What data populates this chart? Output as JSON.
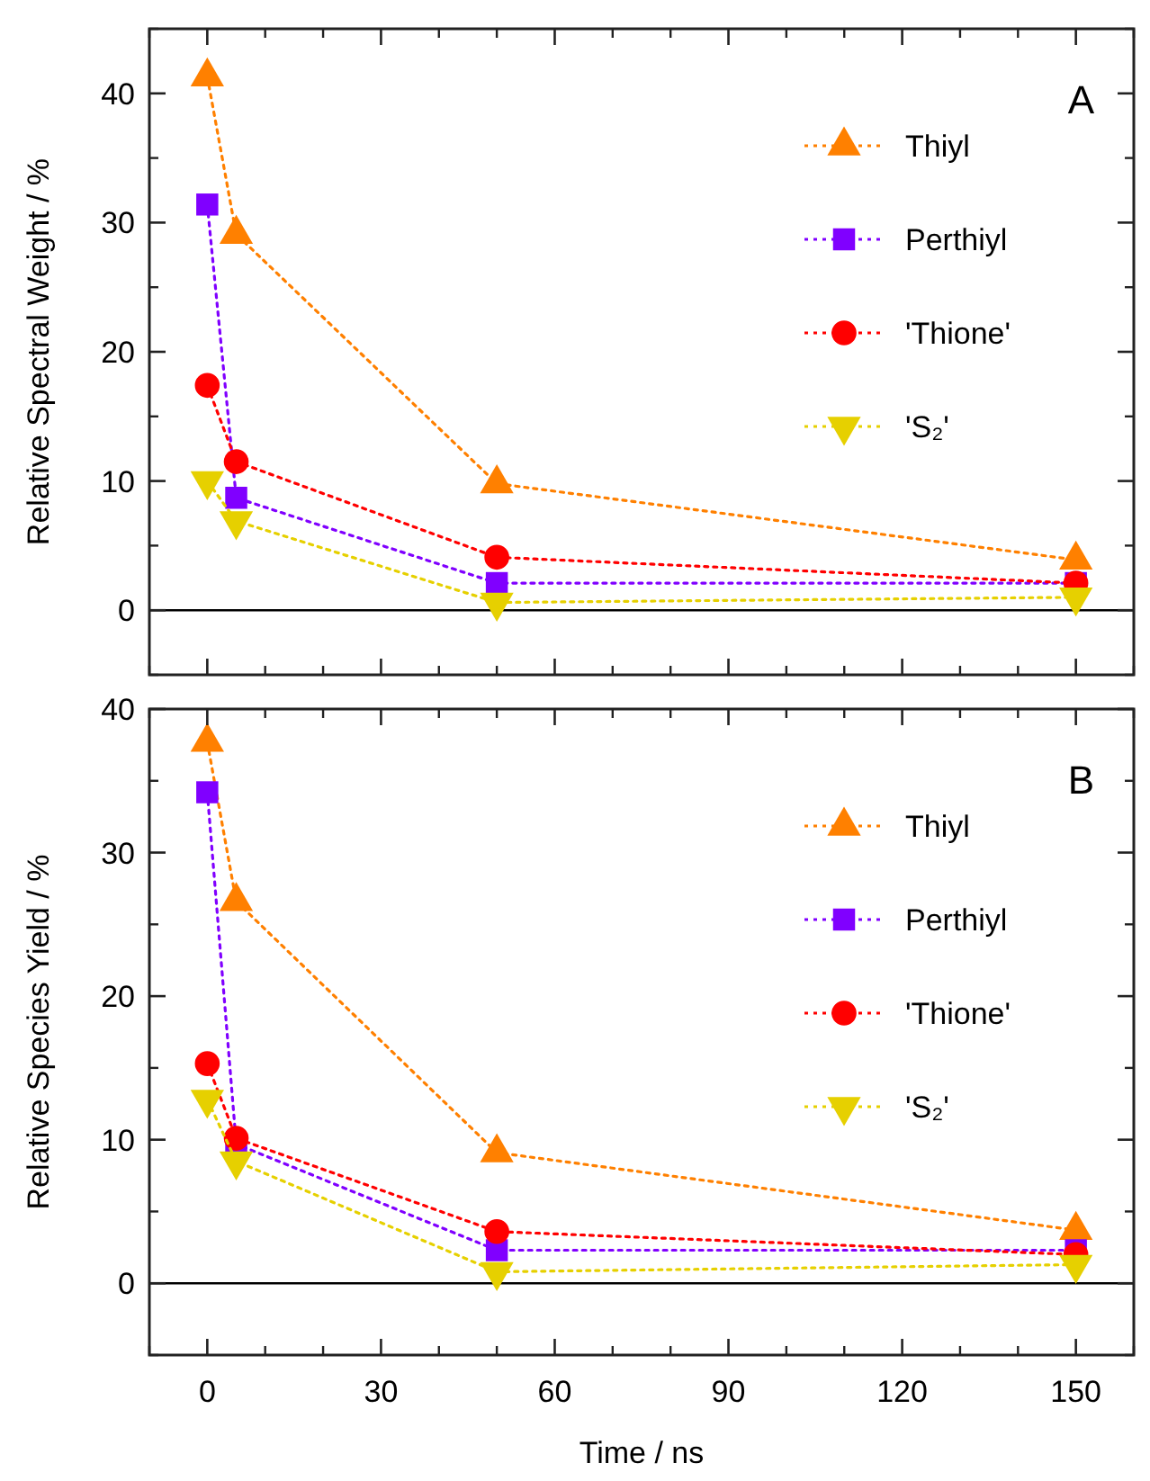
{
  "chart_data": [
    {
      "type": "line",
      "ylabel": "Relative Spectral Weight / %",
      "annotations": [
        "A"
      ],
      "x": [
        0,
        5,
        50,
        150
      ],
      "xlim": [
        -10,
        160
      ],
      "xticks": [
        0,
        30,
        60,
        90,
        120,
        150
      ],
      "ylim": [
        -5,
        45
      ],
      "yticks": [
        0,
        10,
        20,
        30,
        40
      ],
      "tick_labels": "y",
      "legend": "top right",
      "line_style": "dotted",
      "ref_lines": [
        {
          "axis": "y",
          "value": 0,
          "color": "#000000",
          "line_style": "solid"
        }
      ],
      "series": [
        {
          "name": "Thiyl",
          "color": "#ff8000",
          "marker": "triangle",
          "values": [
            41.3,
            29.1,
            9.8,
            3.9
          ]
        },
        {
          "name": "Perthiyl",
          "color": "#8000ff",
          "marker": "square",
          "values": [
            31.4,
            8.7,
            2.1,
            2.1
          ]
        },
        {
          "name": "'Thione'",
          "color": "#ff0000",
          "marker": "circle",
          "values": [
            17.4,
            11.5,
            4.1,
            2.1
          ]
        },
        {
          "name": "'S₂'",
          "color": "#e6d000",
          "marker": "triangle-down",
          "values": [
            10.0,
            6.9,
            0.6,
            1.0
          ]
        }
      ]
    },
    {
      "type": "line",
      "ylabel": "Relative Species Yield / %",
      "xlabel": "Time / ns",
      "annotations": [
        "B"
      ],
      "x": [
        0,
        5,
        50,
        150
      ],
      "xlim": [
        -10,
        160
      ],
      "xticks": [
        0,
        30,
        60,
        90,
        120,
        150
      ],
      "ylim": [
        -5,
        40
      ],
      "yticks": [
        0,
        10,
        20,
        30,
        40
      ],
      "legend": "top right",
      "line_style": "dotted",
      "ref_lines": [
        {
          "axis": "y",
          "value": 0,
          "color": "#000000",
          "line_style": "solid"
        }
      ],
      "series": [
        {
          "name": "Thiyl",
          "color": "#ff8000",
          "marker": "triangle",
          "values": [
            37.7,
            26.6,
            9.1,
            3.7
          ]
        },
        {
          "name": "Perthiyl",
          "color": "#8000ff",
          "marker": "square",
          "values": [
            34.2,
            9.7,
            2.3,
            2.3
          ]
        },
        {
          "name": "'Thione'",
          "color": "#ff0000",
          "marker": "circle",
          "values": [
            15.3,
            10.1,
            3.6,
            2.0
          ]
        },
        {
          "name": "'S₂'",
          "color": "#e6d000",
          "marker": "triangle-down",
          "values": [
            12.8,
            8.5,
            0.8,
            1.3
          ]
        }
      ]
    }
  ]
}
